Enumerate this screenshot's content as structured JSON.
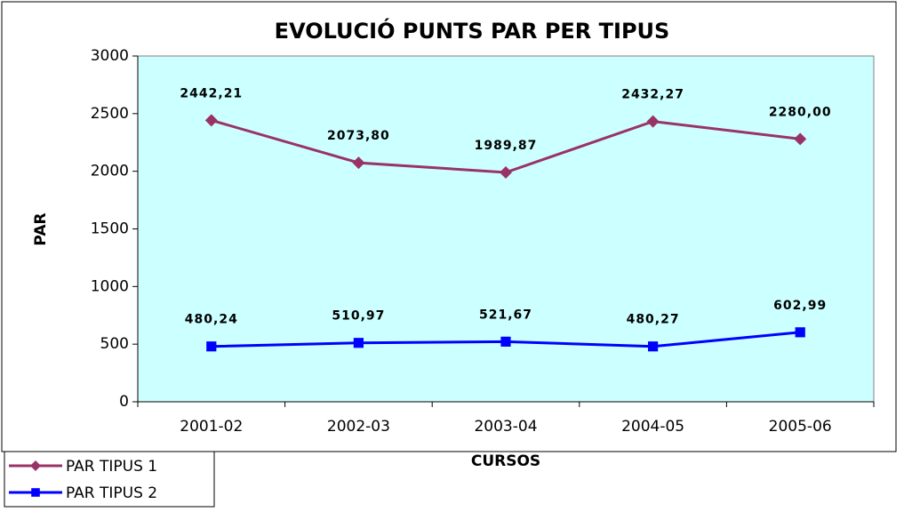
{
  "chart_data": {
    "type": "line",
    "title": "EVOLUCIÓ PUNTS PAR PER TIPUS",
    "x_label": "CURSOS",
    "y_label": "PAR",
    "categories": [
      "2001-02",
      "2002-03",
      "2003-04",
      "2004-05",
      "2005-06"
    ],
    "series": [
      {
        "name": "PAR TIPUS 1",
        "color": "#993366",
        "marker": "diamond",
        "values": [
          2442.21,
          2073.8,
          1989.87,
          2432.27,
          2280.0
        ],
        "value_labels": [
          "2442,21",
          "2073,80",
          "1989,87",
          "2432,27",
          "2280,00"
        ]
      },
      {
        "name": "PAR TIPUS 2",
        "color": "#0000ff",
        "marker": "square",
        "values": [
          480.24,
          510.97,
          521.67,
          480.27,
          602.99
        ],
        "value_labels": [
          "480,24",
          "510,97",
          "521,67",
          "480,27",
          "602,99"
        ]
      }
    ],
    "ylim": [
      0,
      3000
    ],
    "yticks": [
      0,
      500,
      1000,
      1500,
      2000,
      2500,
      3000
    ],
    "grid": false,
    "legend": "bottom-left",
    "plot_background": "#ccffff"
  }
}
